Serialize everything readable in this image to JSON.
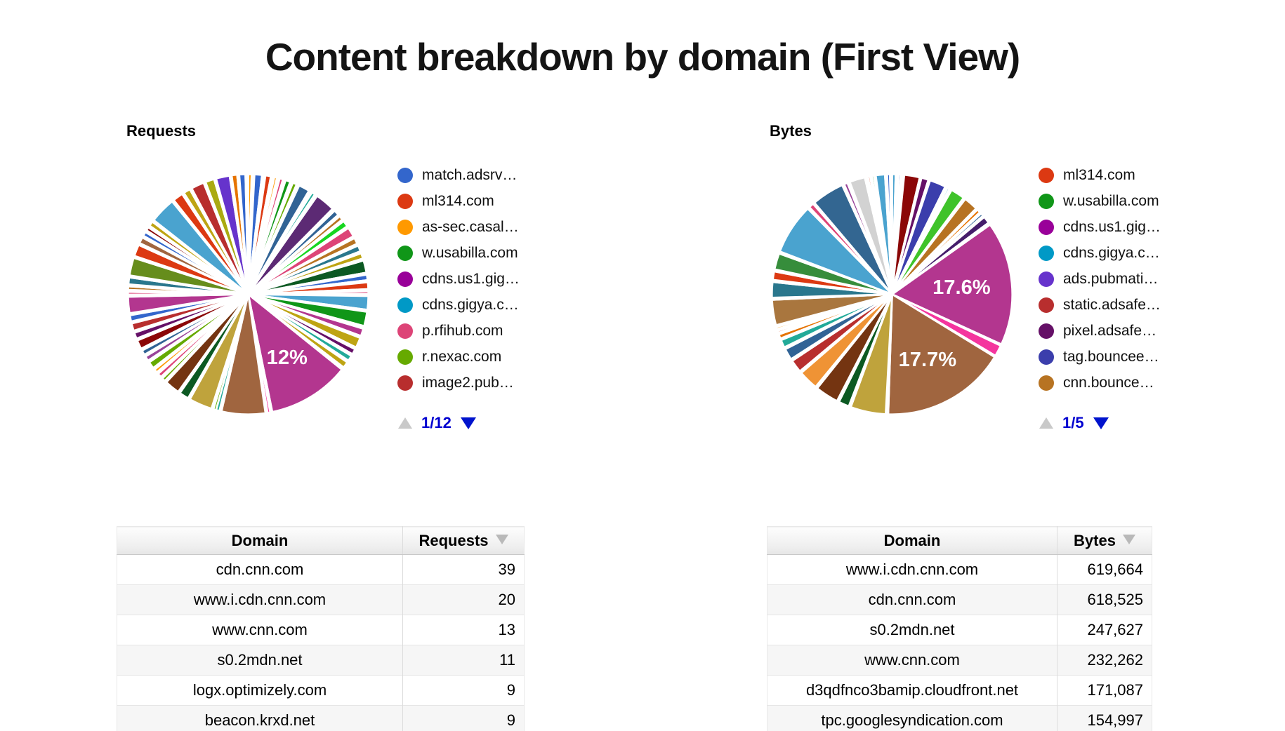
{
  "title": "Content breakdown by domain (First View)",
  "requests_chart": {
    "heading": "Requests",
    "legend": [
      {
        "label": "match.adsrv…",
        "color": "#3366cc"
      },
      {
        "label": "ml314.com",
        "color": "#dc3912"
      },
      {
        "label": "as-sec.casal…",
        "color": "#ff9900"
      },
      {
        "label": "w.usabilla.com",
        "color": "#109618"
      },
      {
        "label": "cdns.us1.gig…",
        "color": "#990099"
      },
      {
        "label": "cdns.gigya.c…",
        "color": "#0099c6"
      },
      {
        "label": "p.rfihub.com",
        "color": "#dd4477"
      },
      {
        "label": "r.nexac.com",
        "color": "#66aa00"
      },
      {
        "label": "image2.pub…",
        "color": "#b82e2e"
      }
    ],
    "pager": {
      "page": "1/12"
    },
    "slices": [
      [
        0.5,
        "#ff9900"
      ],
      [
        0.4,
        "#ffffff"
      ],
      [
        1.1,
        "#3366cc"
      ],
      [
        0.5,
        "#ffffff"
      ],
      [
        0.8,
        "#dc3912"
      ],
      [
        0.5,
        "#ffffff"
      ],
      [
        0.4,
        "#ff9900"
      ],
      [
        0.4,
        "#ffffff"
      ],
      [
        0.5,
        "#dd4477"
      ],
      [
        0.4,
        "#ffffff"
      ],
      [
        0.7,
        "#109618"
      ],
      [
        0.4,
        "#ffffff"
      ],
      [
        0.6,
        "#66aa00"
      ],
      [
        0.4,
        "#ffffff"
      ],
      [
        1.6,
        "#316395"
      ],
      [
        0.5,
        "#ffffff"
      ],
      [
        0.5,
        "#22aa99"
      ],
      [
        0.4,
        "#ffffff"
      ],
      [
        2.9,
        "#5c2a74"
      ],
      [
        0.4,
        "#ffffff"
      ],
      [
        0.8,
        "#316395"
      ],
      [
        0.3,
        "#ffffff"
      ],
      [
        0.6,
        "#b77322"
      ],
      [
        0.3,
        "#ffffff"
      ],
      [
        0.9,
        "#16d620"
      ],
      [
        0.3,
        "#ffffff"
      ],
      [
        1.4,
        "#dd4477"
      ],
      [
        0.3,
        "#ffffff"
      ],
      [
        0.9,
        "#b77322"
      ],
      [
        0.3,
        "#ffffff"
      ],
      [
        0.9,
        "#2a778d"
      ],
      [
        0.3,
        "#ffffff"
      ],
      [
        0.8,
        "#bea413"
      ],
      [
        0.3,
        "#ffffff"
      ],
      [
        1.8,
        "#0c5922"
      ],
      [
        0.3,
        "#ffffff"
      ],
      [
        0.8,
        "#3366cc"
      ],
      [
        0.3,
        "#ffffff"
      ],
      [
        1.0,
        "#dc3912"
      ],
      [
        0.3,
        "#ffffff"
      ],
      [
        0.4,
        "#dd4477"
      ],
      [
        0.3,
        "#ffffff"
      ],
      [
        2.0,
        "#4aa3cf"
      ],
      [
        0.3,
        "#ffffff"
      ],
      [
        2.1,
        "#109618"
      ],
      [
        0.4,
        "#ffffff"
      ],
      [
        1.1,
        "#b3368f"
      ],
      [
        0.3,
        "#ffffff"
      ],
      [
        1.5,
        "#bea413"
      ],
      [
        0.3,
        "#ffffff"
      ],
      [
        0.8,
        "#651067"
      ],
      [
        0.3,
        "#ffffff"
      ],
      [
        0.8,
        "#22aa99"
      ],
      [
        0.3,
        "#ffffff"
      ],
      [
        0.9,
        "#bea413"
      ],
      [
        0.4,
        "#ffffff"
      ],
      [
        12.0,
        "#b3368f",
        "12%",
        0.62
      ],
      [
        0.3,
        "#ffffff"
      ],
      [
        0.4,
        "#f4359e"
      ],
      [
        0.3,
        "#ffffff"
      ],
      [
        6.4,
        "#a0653f"
      ],
      [
        0.3,
        "#ffffff"
      ],
      [
        0.5,
        "#22aa99"
      ],
      [
        0.4,
        "#66aa00"
      ],
      [
        0.3,
        "#ffffff"
      ],
      [
        3.4,
        "#bfa33c"
      ],
      [
        0.3,
        "#ffffff"
      ],
      [
        1.4,
        "#0c5922"
      ],
      [
        0.3,
        "#ffffff"
      ],
      [
        2.2,
        "#743411"
      ],
      [
        0.3,
        "#ffffff"
      ],
      [
        0.5,
        "#66aa00"
      ],
      [
        0.3,
        "#ffffff"
      ],
      [
        0.6,
        "#dd4477"
      ],
      [
        0.3,
        "#ffffff"
      ],
      [
        0.5,
        "#ff9900"
      ],
      [
        0.3,
        "#ffffff"
      ],
      [
        1.0,
        "#66aa00"
      ],
      [
        0.3,
        "#ffffff"
      ],
      [
        0.7,
        "#994499"
      ],
      [
        0.3,
        "#ffffff"
      ],
      [
        0.7,
        "#316395"
      ],
      [
        0.3,
        "#ffffff"
      ],
      [
        1.3,
        "#8b0707"
      ],
      [
        0.3,
        "#ffffff"
      ],
      [
        0.9,
        "#651067"
      ],
      [
        0.3,
        "#ffffff"
      ],
      [
        1.1,
        "#b82e2e"
      ],
      [
        0.3,
        "#ffffff"
      ],
      [
        0.9,
        "#3366cc"
      ],
      [
        0.3,
        "#ffffff"
      ],
      [
        2.4,
        "#b3368f"
      ],
      [
        0.3,
        "#ffffff"
      ],
      [
        0.4,
        "#dd4477"
      ],
      [
        0.3,
        "#ffffff"
      ],
      [
        0.5,
        "#b77322"
      ],
      [
        0.3,
        "#ffffff"
      ],
      [
        1.0,
        "#2a778d"
      ],
      [
        0.3,
        "#ffffff"
      ],
      [
        2.6,
        "#668d1c"
      ],
      [
        0.3,
        "#ffffff"
      ],
      [
        1.7,
        "#dc3912"
      ],
      [
        0.3,
        "#ffffff"
      ],
      [
        0.9,
        "#a0653f"
      ],
      [
        0.3,
        "#ffffff"
      ],
      [
        0.6,
        "#3366cc"
      ],
      [
        0.3,
        "#ffffff"
      ],
      [
        0.5,
        "#8b0707"
      ],
      [
        0.3,
        "#ffffff"
      ],
      [
        0.7,
        "#bea413"
      ],
      [
        0.3,
        "#ffffff"
      ],
      [
        3.8,
        "#4aa3cf"
      ],
      [
        0.3,
        "#ffffff"
      ],
      [
        1.5,
        "#dc3912"
      ],
      [
        0.3,
        "#ffffff"
      ],
      [
        1.0,
        "#bea413"
      ],
      [
        0.3,
        "#ffffff"
      ],
      [
        1.9,
        "#b82e2e"
      ],
      [
        0.3,
        "#ffffff"
      ],
      [
        1.3,
        "#aaaa11"
      ],
      [
        0.3,
        "#ffffff"
      ],
      [
        2.0,
        "#6633cc"
      ],
      [
        0.3,
        "#ffffff"
      ],
      [
        0.8,
        "#e67300"
      ],
      [
        0.3,
        "#ffffff"
      ],
      [
        0.9,
        "#3366cc"
      ],
      [
        0.4,
        "#ffffff"
      ]
    ]
  },
  "bytes_chart": {
    "heading": "Bytes",
    "legend": [
      {
        "label": "ml314.com",
        "color": "#dc3912"
      },
      {
        "label": "w.usabilla.com",
        "color": "#109618"
      },
      {
        "label": "cdns.us1.gig…",
        "color": "#990099"
      },
      {
        "label": "cdns.gigya.c…",
        "color": "#0099c6"
      },
      {
        "label": "ads.pubmati…",
        "color": "#6633cc"
      },
      {
        "label": "static.adsafe…",
        "color": "#b82e2e"
      },
      {
        "label": "pixel.adsafe…",
        "color": "#651067"
      },
      {
        "label": "tag.bouncee…",
        "color": "#3b3eac"
      },
      {
        "label": "cnn.bounce…",
        "color": "#b77322"
      }
    ],
    "pager": {
      "page": "1/5"
    },
    "slices": [
      [
        0.5,
        "#4aa3cf"
      ],
      [
        0.4,
        "#ffffff"
      ],
      [
        0.3,
        "#3366cc"
      ],
      [
        0.5,
        "#ffffff"
      ],
      [
        2.2,
        "#8b0707"
      ],
      [
        0.25,
        "#ffffff"
      ],
      [
        1.0,
        "#651067"
      ],
      [
        0.25,
        "#ffffff"
      ],
      [
        2.3,
        "#3b3eac"
      ],
      [
        0.35,
        "#ffffff"
      ],
      [
        0.3,
        "#0099c6"
      ],
      [
        0.35,
        "#ffffff"
      ],
      [
        2.0,
        "#3fc32a"
      ],
      [
        0.3,
        "#ffffff"
      ],
      [
        2.0,
        "#b77322"
      ],
      [
        0.25,
        "#ffffff"
      ],
      [
        0.5,
        "#e67300"
      ],
      [
        0.25,
        "#ffffff"
      ],
      [
        0.4,
        "#316395"
      ],
      [
        0.25,
        "#ffffff"
      ],
      [
        1.0,
        "#451d6b"
      ],
      [
        0.35,
        "#ffffff"
      ],
      [
        17.6,
        "#b3368f",
        "17.6%",
        0.58
      ],
      [
        0.2,
        "#ffffff"
      ],
      [
        1.6,
        "#f4359e"
      ],
      [
        0.2,
        "#ffffff"
      ],
      [
        17.7,
        "#a0653f",
        "17.7%",
        0.62
      ],
      [
        0.35,
        "#ffffff"
      ],
      [
        5.0,
        "#bfa33c"
      ],
      [
        0.3,
        "#ffffff"
      ],
      [
        1.5,
        "#0c5922"
      ],
      [
        0.3,
        "#ffffff"
      ],
      [
        3.3,
        "#743411"
      ],
      [
        0.3,
        "#ffffff"
      ],
      [
        2.8,
        "#ef9335"
      ],
      [
        0.3,
        "#ffffff"
      ],
      [
        1.8,
        "#b82e2e"
      ],
      [
        0.3,
        "#ffffff"
      ],
      [
        1.6,
        "#316395"
      ],
      [
        0.3,
        "#ffffff"
      ],
      [
        1.1,
        "#22aa99"
      ],
      [
        0.25,
        "#ffffff"
      ],
      [
        0.6,
        "#e67300"
      ],
      [
        0.25,
        "#ffffff"
      ],
      [
        0.3,
        "#dc3912"
      ],
      [
        0.25,
        "#ffffff"
      ],
      [
        0.3,
        "#ff9900"
      ],
      [
        0.25,
        "#ffffff"
      ],
      [
        3.6,
        "#a9763e"
      ],
      [
        0.3,
        "#ffffff"
      ],
      [
        2.2,
        "#2a778d"
      ],
      [
        0.3,
        "#ffffff"
      ],
      [
        1.2,
        "#dc3912"
      ],
      [
        0.3,
        "#ffffff"
      ],
      [
        2.3,
        "#368d3b"
      ],
      [
        0.3,
        "#ffffff"
      ],
      [
        7.2,
        "#4aa3cf"
      ],
      [
        0.3,
        "#ffffff"
      ],
      [
        0.7,
        "#dd4477"
      ],
      [
        0.25,
        "#ffffff"
      ],
      [
        4.6,
        "#336691"
      ],
      [
        0.3,
        "#ffffff"
      ],
      [
        0.5,
        "#994499"
      ],
      [
        0.35,
        "#ffffff"
      ],
      [
        2.2,
        "#d2d2d2"
      ],
      [
        0.45,
        "#ffffff"
      ],
      [
        0.3,
        "#dc3912"
      ],
      [
        0.25,
        "#ffffff"
      ],
      [
        0.3,
        "#109618"
      ],
      [
        0.25,
        "#ffffff"
      ],
      [
        1.3,
        "#4aa3cf"
      ],
      [
        0.3,
        "#ffffff"
      ],
      [
        0.4,
        "#3366cc"
      ],
      [
        0.3,
        "#ffffff"
      ]
    ]
  },
  "requests_table": {
    "columns": [
      "Domain",
      "Requests"
    ],
    "rows": [
      [
        "cdn.cnn.com",
        "39"
      ],
      [
        "www.i.cdn.cnn.com",
        "20"
      ],
      [
        "www.cnn.com",
        "13"
      ],
      [
        "s0.2mdn.net",
        "11"
      ],
      [
        "logx.optimizely.com",
        "9"
      ],
      [
        "beacon.krxd.net",
        "9"
      ]
    ]
  },
  "bytes_table": {
    "columns": [
      "Domain",
      "Bytes"
    ],
    "rows": [
      [
        "www.i.cdn.cnn.com",
        "619,664"
      ],
      [
        "cdn.cnn.com",
        "618,525"
      ],
      [
        "s0.2mdn.net",
        "247,627"
      ],
      [
        "www.cnn.com",
        "232,262"
      ],
      [
        "d3qdfnco3bamip.cloudfront.net",
        "171,087"
      ],
      [
        "tpc.googlesyndication.com",
        "154,997"
      ]
    ]
  },
  "chart_data": [
    {
      "type": "pie",
      "title": "Requests",
      "legend": [
        "match.adsrv…",
        "ml314.com",
        "as-sec.casal…",
        "w.usabilla.com",
        "cdns.us1.gig…",
        "cdns.gigya.c…",
        "p.rfihub.com",
        "r.nexac.com",
        "image2.pub…"
      ],
      "legend_position": "right",
      "legend_page": "1/12",
      "labeled_slices": [
        {
          "label": "12%",
          "value_pct": 12
        }
      ]
    },
    {
      "type": "pie",
      "title": "Bytes",
      "legend": [
        "ml314.com",
        "w.usabilla.com",
        "cdns.us1.gig…",
        "cdns.gigya.c…",
        "ads.pubmati…",
        "static.adsafe…",
        "pixel.adsafe…",
        "tag.bouncee…",
        "cnn.bounce…"
      ],
      "legend_position": "right",
      "legend_page": "1/5",
      "labeled_slices": [
        {
          "label": "17.6%",
          "value_pct": 17.6
        },
        {
          "label": "17.7%",
          "value_pct": 17.7
        }
      ]
    },
    {
      "type": "table",
      "columns": [
        "Domain",
        "Requests"
      ],
      "sort": "Requests descending",
      "rows": [
        [
          "cdn.cnn.com",
          39
        ],
        [
          "www.i.cdn.cnn.com",
          20
        ],
        [
          "www.cnn.com",
          13
        ],
        [
          "s0.2mdn.net",
          11
        ],
        [
          "logx.optimizely.com",
          9
        ],
        [
          "beacon.krxd.net",
          9
        ]
      ]
    },
    {
      "type": "table",
      "columns": [
        "Domain",
        "Bytes"
      ],
      "sort": "Bytes descending",
      "rows": [
        [
          "www.i.cdn.cnn.com",
          619664
        ],
        [
          "cdn.cnn.com",
          618525
        ],
        [
          "s0.2mdn.net",
          247627
        ],
        [
          "www.cnn.com",
          232262
        ],
        [
          "d3qdfnco3bamip.cloudfront.net",
          171087
        ],
        [
          "tpc.googlesyndication.com",
          154997
        ]
      ]
    }
  ]
}
